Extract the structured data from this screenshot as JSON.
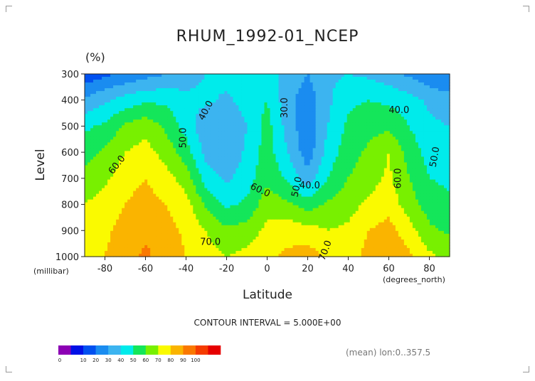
{
  "chart_data": {
    "type": "heatmap",
    "title": "RHUM_1992-01_NCEP",
    "unit": "(%)",
    "xlabel": "Latitude",
    "ylabel": "Level",
    "x_unit": "(degrees_north)",
    "y_unit": "(millibar)",
    "xlim": [
      -90,
      90
    ],
    "ylim": [
      1000,
      300
    ],
    "x_ticks": [
      "-80",
      "-60",
      "-40",
      "-20",
      "0",
      "20",
      "40",
      "60",
      "80"
    ],
    "y_ticks": [
      "300",
      "400",
      "500",
      "600",
      "700",
      "800",
      "900",
      "1000"
    ],
    "contour_interval_text": "CONTOUR INTERVAL = 5.000E+00",
    "mean_text": "(mean) lon:0..357.5",
    "contour_labels": [
      "40.0",
      "50.0",
      "30.0",
      "40.0",
      "60.0",
      "50.0",
      "40.0",
      "60.0",
      "60.0",
      "50.0",
      "70.0",
      "70.0"
    ],
    "grid": false,
    "legend": "bottom-left",
    "colorbar": {
      "ticks": [
        "0",
        "10",
        "20",
        "30",
        "40",
        "50",
        "60",
        "70",
        "80",
        "90",
        "100"
      ],
      "colors": [
        "#8c00b4",
        "#0010e6",
        "#0050f0",
        "#1a8cf0",
        "#3cb4f0",
        "#00ebeb",
        "#14e65a",
        "#78f000",
        "#fafa00",
        "#fab400",
        "#fa7800",
        "#f53c00",
        "#e60000"
      ]
    },
    "x": [
      -90,
      -80,
      -70,
      -60,
      -50,
      -40,
      -30,
      -20,
      -10,
      0,
      10,
      20,
      30,
      40,
      50,
      60,
      70,
      80,
      90
    ],
    "levels": [
      1000,
      900,
      800,
      700,
      600,
      500,
      400,
      300
    ],
    "values": [
      [
        74,
        80,
        86,
        92,
        86,
        80,
        74,
        70,
        73,
        78,
        82,
        85,
        78,
        74,
        84,
        90,
        82,
        72,
        68
      ],
      [
        73,
        78,
        84,
        88,
        84,
        78,
        70,
        62,
        64,
        73,
        76,
        74,
        70,
        72,
        80,
        84,
        74,
        62,
        58
      ],
      [
        70,
        74,
        80,
        84,
        80,
        74,
        58,
        48,
        52,
        66,
        62,
        55,
        62,
        66,
        72,
        76,
        65,
        55,
        52
      ],
      [
        64,
        68,
        76,
        80,
        74,
        65,
        45,
        38,
        45,
        58,
        48,
        34,
        50,
        60,
        66,
        72,
        60,
        50,
        48
      ],
      [
        56,
        62,
        70,
        74,
        66,
        55,
        36,
        32,
        42,
        55,
        40,
        24,
        44,
        56,
        62,
        70,
        56,
        46,
        44
      ],
      [
        48,
        52,
        62,
        66,
        58,
        46,
        32,
        30,
        40,
        54,
        36,
        22,
        40,
        52,
        56,
        58,
        50,
        42,
        40
      ],
      [
        32,
        38,
        44,
        48,
        48,
        42,
        42,
        38,
        44,
        50,
        34,
        24,
        38,
        48,
        50,
        48,
        44,
        38,
        34
      ],
      [
        12,
        18,
        22,
        26,
        30,
        36,
        40,
        44,
        44,
        44,
        36,
        30,
        38,
        40,
        38,
        34,
        28,
        22,
        20
      ]
    ]
  }
}
